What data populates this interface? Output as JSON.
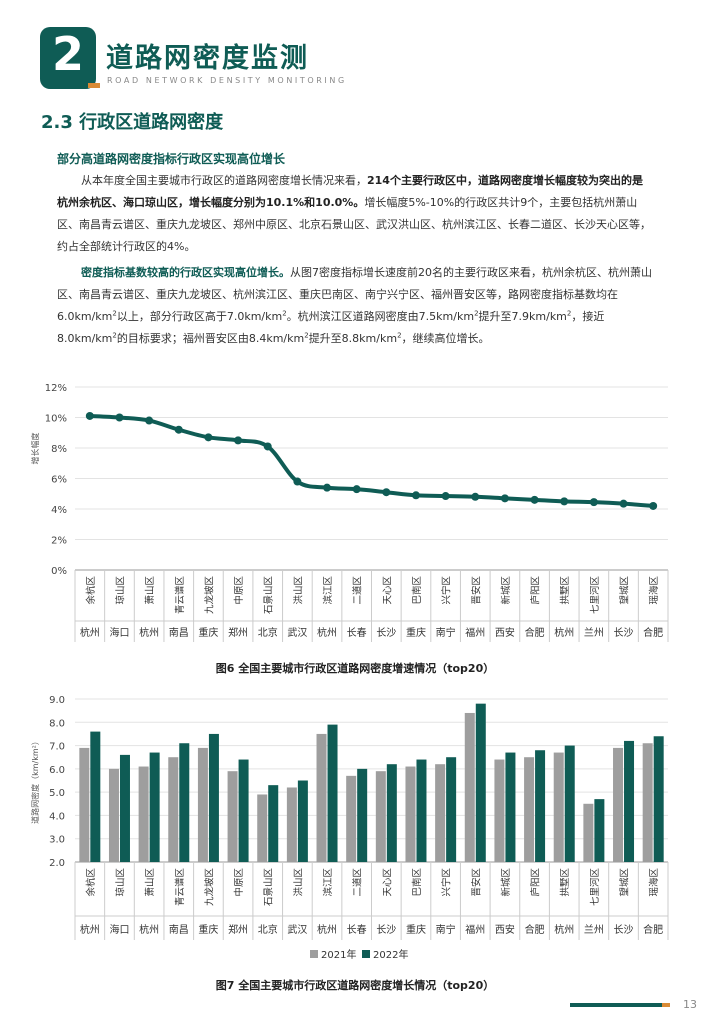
{
  "header": {
    "chapter_number": "2",
    "title": "道路网密度监测",
    "subtitle": "ROAD NETWORK DENSITY MONITORING"
  },
  "section": {
    "title": "2.3 行政区道路网密度"
  },
  "subheading1": "部分高道路网密度指标行政区实现高位增长",
  "paragraph1": {
    "part1": "从本年度全国主要城市行政区的道路网密度增长情况来看，",
    "bold": "214个主要行政区中，道路网密度增长幅度较为突出的是杭州余杭区、海口琼山区，增长幅度分别为10.1%和10.0%。",
    "part2": "增长幅度5%-10%的行政区共计9个，主要包括杭州萧山区、南昌青云谱区、重庆九龙坡区、郑州中原区、北京石景山区、武汉洪山区、杭州滨江区、长春二道区、长沙天心区等，约占全部统计行政区的4%。"
  },
  "paragraph2": {
    "lead": "密度指标基数较高的行政区实现高位增长。",
    "t1": "从图7密度指标增长速度前20名的主要行政区来看，杭州余杭区、杭州萧山区、南昌青云谱区、重庆九龙坡区、杭州滨江区、重庆巴南区、南宁兴宁区、福州晋安区等，路网密度指标基数均在6.0km/km",
    "t2": "以上，部分行政区高于7.0km/km",
    "t3": "。杭州滨江区道路网密度由7.5km/km",
    "t4": "提升至7.9km/km",
    "t5": "，接近8.0km/km",
    "t6": "的目标要求；福州晋安区由8.4km/km",
    "t7": "提升至8.8km/km",
    "t8": "，继续高位增长。",
    "sup": "2"
  },
  "chart_data": [
    {
      "type": "line",
      "ylabel": "增长幅度",
      "ylim": [
        0,
        12
      ],
      "yticks": [
        "0%",
        "2%",
        "4%",
        "6%",
        "8%",
        "10%",
        "12%"
      ],
      "categories": [
        "余杭区",
        "琼山区",
        "萧山区",
        "青云谱区",
        "九龙坡区",
        "中原区",
        "石景山区",
        "洪山区",
        "滨江区",
        "二道区",
        "天心区",
        "巴南区",
        "兴宁区",
        "晋安区",
        "新城区",
        "庐阳区",
        "拱墅区",
        "七里河区",
        "望城区",
        "瑶海区"
      ],
      "cities": [
        "杭州",
        "海口",
        "杭州",
        "南昌",
        "重庆",
        "郑州",
        "北京",
        "武汉",
        "杭州",
        "长春",
        "长沙",
        "重庆",
        "南宁",
        "福州",
        "西安",
        "合肥",
        "杭州",
        "兰州",
        "长沙",
        "合肥"
      ],
      "values": [
        10.1,
        10.0,
        9.8,
        9.2,
        8.7,
        8.5,
        8.1,
        5.8,
        5.4,
        5.3,
        5.1,
        4.9,
        4.85,
        4.8,
        4.7,
        4.6,
        4.5,
        4.45,
        4.35,
        4.2
      ],
      "color": "#0f5c55",
      "grid": true,
      "title": "图6 全国主要城市行政区道路网密度增速情况（top20）"
    },
    {
      "type": "bar",
      "ylabel": "道路网密度（km/km²）",
      "ylim": [
        2.0,
        9.0
      ],
      "yticks": [
        "2.0",
        "3.0",
        "4.0",
        "5.0",
        "6.0",
        "7.0",
        "8.0",
        "9.0"
      ],
      "categories": [
        "余杭区",
        "琼山区",
        "萧山区",
        "青云谱区",
        "九龙坡区",
        "中原区",
        "石景山区",
        "洪山区",
        "滨江区",
        "二道区",
        "天心区",
        "巴南区",
        "兴宁区",
        "晋安区",
        "新城区",
        "庐阳区",
        "拱墅区",
        "七里河区",
        "望城区",
        "瑶海区"
      ],
      "cities": [
        "杭州",
        "海口",
        "杭州",
        "南昌",
        "重庆",
        "郑州",
        "北京",
        "武汉",
        "杭州",
        "长春",
        "长沙",
        "重庆",
        "南宁",
        "福州",
        "西安",
        "合肥",
        "杭州",
        "兰州",
        "长沙",
        "合肥"
      ],
      "series": [
        {
          "name": "2021年",
          "color": "#9e9e9e",
          "values": [
            6.9,
            6.0,
            6.1,
            6.5,
            6.9,
            5.9,
            4.9,
            5.2,
            7.5,
            5.7,
            5.9,
            6.1,
            6.2,
            8.4,
            6.4,
            6.5,
            6.7,
            4.5,
            6.9,
            7.1
          ]
        },
        {
          "name": "2022年",
          "color": "#0f5c55",
          "values": [
            7.6,
            6.6,
            6.7,
            7.1,
            7.5,
            6.4,
            5.3,
            5.5,
            7.9,
            6.0,
            6.2,
            6.4,
            6.5,
            8.8,
            6.7,
            6.8,
            7.0,
            4.7,
            7.2,
            7.4
          ]
        }
      ],
      "legend_position": "bottom",
      "grid": true,
      "title": "图7 全国主要城市行政区道路网密度增长情况（top20）"
    }
  ],
  "footer": {
    "page_number": "13"
  }
}
